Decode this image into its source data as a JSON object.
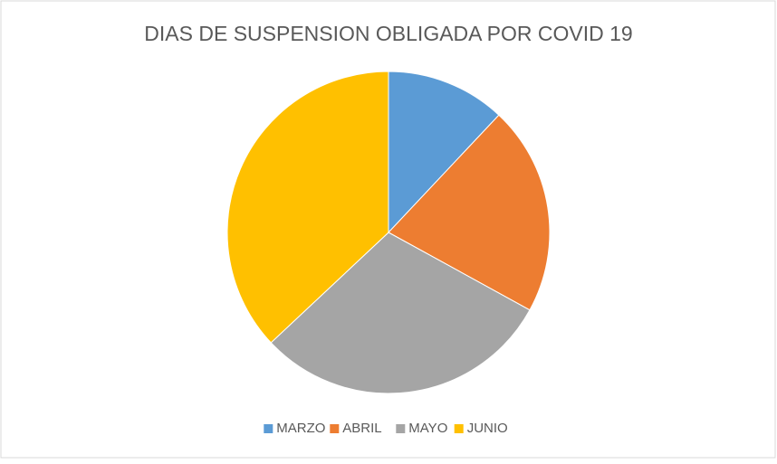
{
  "chart_data": {
    "type": "pie",
    "title": "DIAS DE SUSPENSION OBLIGADA POR COVID 19",
    "categories": [
      "MARZO",
      "ABRIL",
      "MAYO",
      "JUNIO"
    ],
    "values": [
      12,
      21,
      30,
      37
    ],
    "colors": [
      "#5b9bd5",
      "#ed7d31",
      "#a5a5a5",
      "#ffc000"
    ],
    "legend": "bottom"
  }
}
